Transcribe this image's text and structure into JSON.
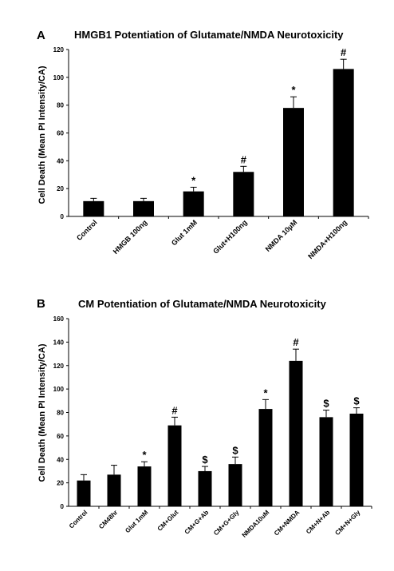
{
  "chart_data": [
    {
      "type": "bar",
      "panel": "A",
      "title": "HMGB1 Potentiation of Glutamate/NMDA Neurotoxicity",
      "xlabel": "",
      "ylabel": "Cell Death (Mean PI Intensity/CA)",
      "ylim": [
        0,
        120
      ],
      "yticks": [
        "0",
        "20",
        "40",
        "60",
        "80",
        "100",
        "120"
      ],
      "grid": false,
      "categories": [
        "Control",
        "HMGB 100ng",
        "Glut 1mM",
        "Glut+H100ng",
        "NMDA 10µM",
        "NMDA+H100ng"
      ],
      "values": [
        11,
        11,
        18,
        32,
        78,
        106
      ],
      "errors": [
        2,
        2,
        3,
        4,
        8,
        7
      ],
      "markers": [
        "",
        "",
        "*",
        "#",
        "*",
        "#"
      ]
    },
    {
      "type": "bar",
      "panel": "B",
      "title": "CM Potentiation of Glutamate/NMDA Neurotoxicity",
      "xlabel": "",
      "ylabel": "Cell Death (Mean PI Intensity/CA)",
      "ylim": [
        0,
        160
      ],
      "yticks": [
        "0",
        "20",
        "40",
        "60",
        "80",
        "100",
        "120",
        "140",
        "160"
      ],
      "grid": false,
      "categories": [
        "Control",
        "CM48hr",
        "Glut 1mM",
        "CM+Glut",
        "CM+G+Ab",
        "CM+G+Gly",
        "NMDA10uM",
        "CM+NMDA",
        "CM+N+Ab",
        "CM+N+Gly"
      ],
      "values": [
        22,
        27,
        34,
        69,
        30,
        36,
        83,
        124,
        76,
        79
      ],
      "errors": [
        5,
        8,
        4,
        7,
        4,
        6,
        8,
        10,
        6,
        5
      ],
      "markers": [
        "",
        "",
        "*",
        "#",
        "$",
        "$",
        "*",
        "#",
        "$",
        "$"
      ]
    }
  ]
}
